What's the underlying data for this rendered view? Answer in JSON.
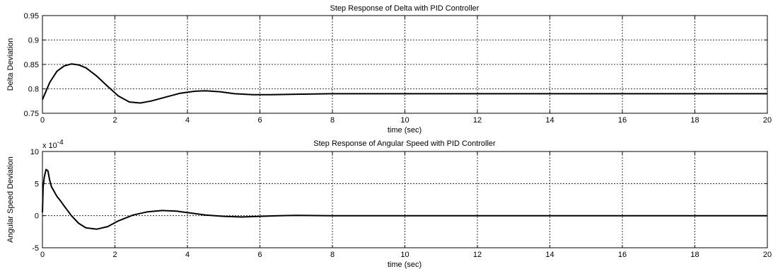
{
  "chart_data": [
    {
      "type": "line",
      "title": "Step Response of Delta with PID Controller",
      "xlabel": "time (sec)",
      "ylabel": "Delta Deviation",
      "xlim": [
        0,
        20
      ],
      "ylim": [
        0.75,
        0.95
      ],
      "xticks": [
        0,
        2,
        4,
        6,
        8,
        10,
        12,
        14,
        16,
        18,
        20
      ],
      "yticks": [
        0.75,
        0.8,
        0.85,
        0.9,
        0.95
      ],
      "ytick_labels": [
        "0.75",
        "0.8",
        "0.85",
        "0.9",
        "0.95"
      ],
      "grid": true,
      "line_color": "#000000",
      "series": [
        {
          "x": [
            0,
            0.2,
            0.4,
            0.6,
            0.8,
            1.0,
            1.2,
            1.5,
            1.8,
            2.1,
            2.4,
            2.7,
            3.0,
            3.4,
            3.8,
            4.2,
            4.5,
            4.9,
            5.3,
            5.8,
            6.3,
            7.0,
            8.0,
            10.0,
            14.0,
            20.0
          ],
          "y": [
            0.778,
            0.813,
            0.836,
            0.847,
            0.851,
            0.849,
            0.843,
            0.826,
            0.805,
            0.785,
            0.773,
            0.771,
            0.775,
            0.783,
            0.791,
            0.795,
            0.796,
            0.794,
            0.79,
            0.788,
            0.788,
            0.789,
            0.79,
            0.79,
            0.79,
            0.79
          ]
        }
      ]
    },
    {
      "type": "line",
      "title": "Step Response of Angular Speed with PID Controller",
      "xlabel": "time (sec)",
      "ylabel": "Angular Speed Deviation",
      "y_multiplier": "x 10",
      "y_exponent": "-4",
      "xlim": [
        0,
        20
      ],
      "ylim": [
        -5,
        10
      ],
      "xticks": [
        0,
        2,
        4,
        6,
        8,
        10,
        12,
        14,
        16,
        18,
        20
      ],
      "yticks": [
        -5,
        0,
        5,
        10
      ],
      "ytick_labels": [
        "-5",
        "0",
        "5",
        "10"
      ],
      "grid": true,
      "line_color": "#000000",
      "series": [
        {
          "x": [
            0,
            0.02,
            0.05,
            0.1,
            0.15,
            0.2,
            0.25,
            0.3,
            0.4,
            0.5,
            0.6,
            0.8,
            1.0,
            1.2,
            1.5,
            1.8,
            2.1,
            2.5,
            2.9,
            3.3,
            3.7,
            4.1,
            4.5,
            5.0,
            5.5,
            6.0,
            6.5,
            7.0,
            8.0,
            10.0,
            14.0,
            20.0
          ],
          "y": [
            0.5,
            4.5,
            6.0,
            7.2,
            7.0,
            5.5,
            4.5,
            4.0,
            3.0,
            2.3,
            1.5,
            0.0,
            -1.2,
            -1.9,
            -2.1,
            -1.7,
            -0.8,
            0.1,
            0.6,
            0.8,
            0.7,
            0.4,
            0.1,
            -0.1,
            -0.2,
            -0.1,
            0.0,
            0.05,
            0.0,
            0.0,
            0.0,
            0.0
          ]
        }
      ]
    }
  ]
}
